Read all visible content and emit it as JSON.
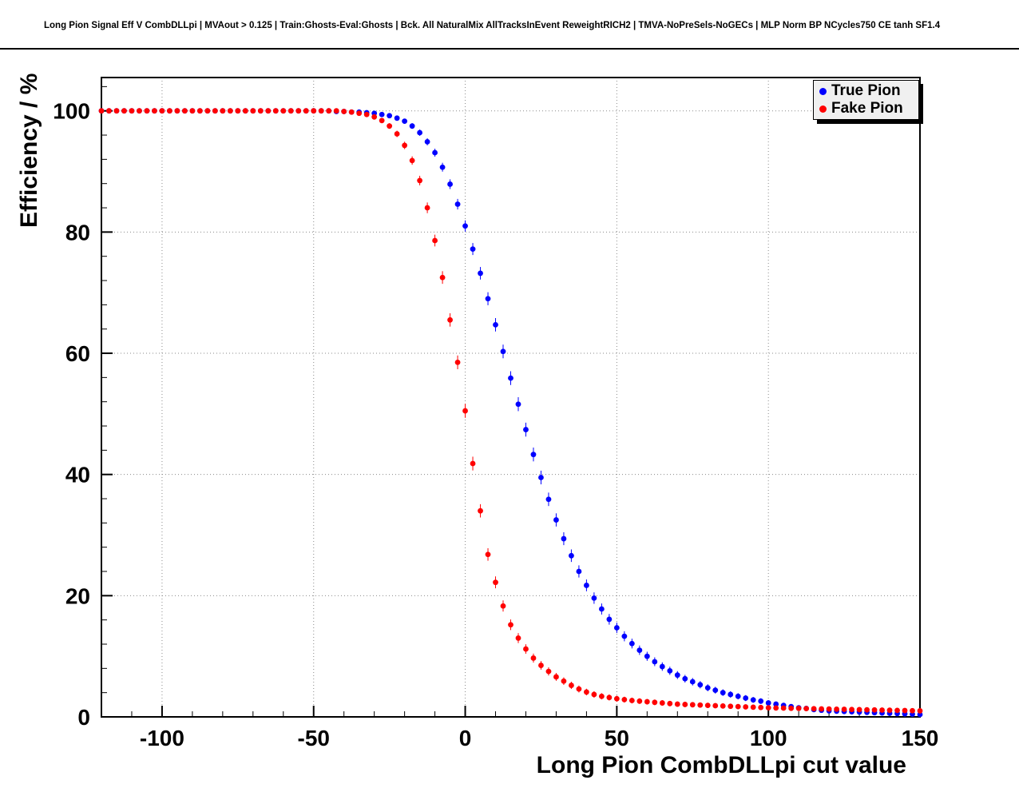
{
  "chart_data": {
    "type": "scatter",
    "title": "Long Pion Signal Eff V CombDLLpi | MVAout > 0.125 | Train:Ghosts-Eval:Ghosts | Bck. All NaturalMix AllTracksInEvent ReweightRICH2 | TMVA-NoPreSels-NoGECs | MLP Norm BP NCycles750 CE tanh SF1.4",
    "xlabel": "Long Pion CombDLLpi cut value",
    "ylabel": "Efficiency / %",
    "xlim": [
      -120,
      150
    ],
    "ylim": [
      0,
      105.5
    ],
    "x_ticks": [
      -100,
      -50,
      0,
      50,
      100,
      150
    ],
    "y_ticks": [
      0,
      20,
      40,
      60,
      80,
      100
    ],
    "x_minor_step": 10,
    "y_minor_step": 4,
    "grid": true,
    "legend_position": "top-right",
    "x": [
      -120,
      -117.5,
      -115,
      -112.5,
      -110,
      -107.5,
      -105,
      -102.5,
      -100,
      -97.5,
      -95,
      -92.5,
      -90,
      -87.5,
      -85,
      -82.5,
      -80,
      -77.5,
      -75,
      -72.5,
      -70,
      -67.5,
      -65,
      -62.5,
      -60,
      -57.5,
      -55,
      -52.5,
      -50,
      -47.5,
      -45,
      -42.5,
      -40,
      -37.5,
      -35,
      -32.5,
      -30,
      -27.5,
      -25,
      -22.5,
      -20,
      -17.5,
      -15,
      -12.5,
      -10,
      -7.5,
      -5,
      -2.5,
      0,
      2.5,
      5,
      7.5,
      10,
      12.5,
      15,
      17.5,
      20,
      22.5,
      25,
      27.5,
      30,
      32.5,
      35,
      37.5,
      40,
      42.5,
      45,
      47.5,
      50,
      52.5,
      55,
      57.5,
      60,
      62.5,
      65,
      67.5,
      70,
      72.5,
      75,
      77.5,
      80,
      82.5,
      85,
      87.5,
      90,
      92.5,
      95,
      97.5,
      100,
      102.5,
      105,
      107.5,
      110,
      112.5,
      115,
      117.5,
      120,
      122.5,
      125,
      127.5,
      130,
      132.5,
      135,
      137.5,
      140,
      142.5,
      145,
      147.5,
      150
    ],
    "series": [
      {
        "name": "True Pion",
        "color": "#0000ff",
        "values": [
          100,
          100,
          100,
          100,
          100,
          100,
          100,
          100,
          100,
          100,
          100,
          100,
          100,
          100,
          100,
          100,
          100,
          100,
          100,
          100,
          100,
          100,
          100,
          100,
          100,
          100,
          100,
          100,
          100,
          100,
          100,
          99.9,
          99.9,
          99.8,
          99.8,
          99.7,
          99.6,
          99.4,
          99.2,
          98.8,
          98.3,
          97.5,
          96.4,
          94.9,
          93.1,
          90.7,
          87.9,
          84.6,
          81.0,
          77.2,
          73.2,
          69.0,
          64.7,
          60.3,
          55.9,
          51.6,
          47.4,
          43.3,
          39.5,
          35.9,
          32.5,
          29.4,
          26.6,
          24.0,
          21.7,
          19.6,
          17.8,
          16.1,
          14.7,
          13.3,
          12.1,
          11.0,
          10.0,
          9.1,
          8.3,
          7.6,
          6.9,
          6.3,
          5.8,
          5.3,
          4.8,
          4.4,
          4.0,
          3.7,
          3.4,
          3.1,
          2.8,
          2.6,
          2.3,
          2.1,
          1.9,
          1.7,
          1.5,
          1.4,
          1.2,
          1.1,
          1.0,
          0.95,
          0.9,
          0.85,
          0.8,
          0.75,
          0.7,
          0.65,
          0.6,
          0.55,
          0.5,
          0.45,
          0.4
        ]
      },
      {
        "name": "Fake Pion",
        "color": "#ff0000",
        "values": [
          100,
          100,
          100,
          100,
          100,
          100,
          100,
          100,
          100,
          100,
          100,
          100,
          100,
          100,
          100,
          100,
          100,
          100,
          100,
          100,
          100,
          100,
          100,
          100,
          100,
          100,
          100,
          100,
          100,
          100,
          100,
          100,
          99.9,
          99.8,
          99.6,
          99.4,
          99.0,
          98.4,
          97.5,
          96.2,
          94.3,
          91.8,
          88.5,
          84.0,
          78.6,
          72.5,
          65.5,
          58.5,
          50.5,
          41.8,
          34.0,
          26.8,
          22.2,
          18.3,
          15.2,
          13.0,
          11.2,
          9.7,
          8.5,
          7.5,
          6.6,
          5.9,
          5.2,
          4.6,
          4.1,
          3.7,
          3.4,
          3.2,
          3.0,
          2.85,
          2.7,
          2.6,
          2.5,
          2.4,
          2.3,
          2.2,
          2.1,
          2.05,
          2.0,
          1.95,
          1.9,
          1.85,
          1.8,
          1.75,
          1.7,
          1.65,
          1.6,
          1.55,
          1.5,
          1.47,
          1.45,
          1.42,
          1.4,
          1.37,
          1.35,
          1.32,
          1.3,
          1.27,
          1.25,
          1.22,
          1.2,
          1.17,
          1.15,
          1.12,
          1.1,
          1.07,
          1.05,
          1.02,
          1.0
        ]
      }
    ]
  }
}
